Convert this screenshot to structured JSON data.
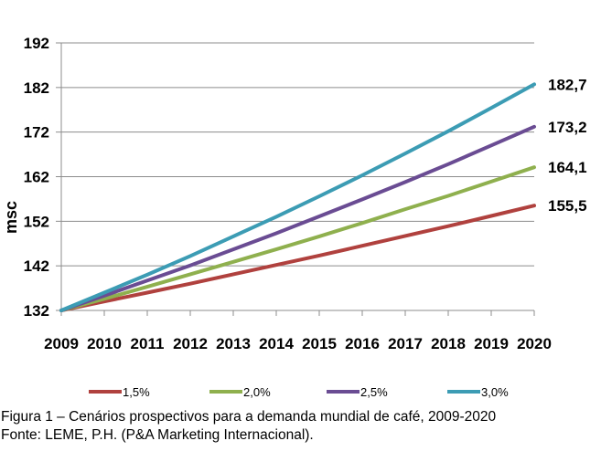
{
  "chart_data": {
    "type": "line",
    "x": [
      2009,
      2010,
      2011,
      2012,
      2013,
      2014,
      2015,
      2016,
      2017,
      2018,
      2019,
      2020
    ],
    "ylabel": "msc",
    "ylim": [
      132,
      192
    ],
    "yticks": [
      132,
      142,
      152,
      162,
      172,
      182,
      192
    ],
    "grid": true,
    "legend_position": "bottom",
    "series": [
      {
        "name": "1,5%",
        "color": "#b0413e",
        "values": [
          132.0,
          134.0,
          136.0,
          138.0,
          140.1,
          142.2,
          144.3,
          146.5,
          148.7,
          150.9,
          153.2,
          155.5
        ],
        "end_label": "155,5"
      },
      {
        "name": "2,0%",
        "color": "#8fb04e",
        "values": [
          132.0,
          134.6,
          137.3,
          140.1,
          142.9,
          145.7,
          148.6,
          151.6,
          154.7,
          157.7,
          160.9,
          164.1
        ],
        "end_label": "164,1"
      },
      {
        "name": "2,5%",
        "color": "#6a4c93",
        "values": [
          132.0,
          135.3,
          138.7,
          142.1,
          145.7,
          149.3,
          153.1,
          156.9,
          160.8,
          164.8,
          169.0,
          173.2
        ],
        "end_label": "173,2"
      },
      {
        "name": "3,0%",
        "color": "#3c9cb4",
        "values": [
          132.0,
          136.0,
          140.0,
          144.2,
          148.6,
          153.0,
          157.6,
          162.3,
          167.2,
          172.2,
          177.4,
          182.7
        ],
        "end_label": "182,7"
      }
    ]
  },
  "caption": {
    "line1": "Figura 1 – Cenários prospectivos para a demanda mundial de café, 2009-2020",
    "line2": "Fonte: LEME, P.H. (P&A Marketing Internacional)."
  }
}
